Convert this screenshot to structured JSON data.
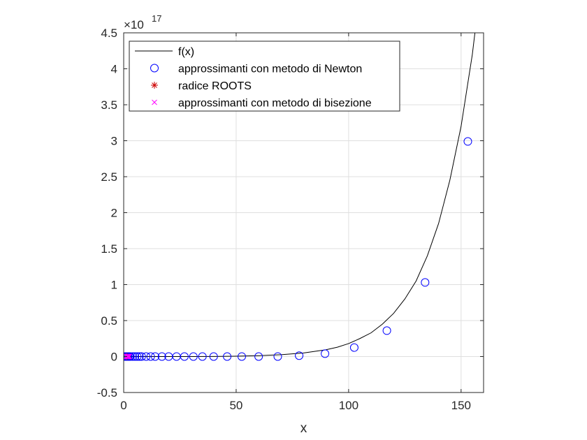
{
  "chart_data": {
    "type": "line",
    "title": "",
    "xlabel": "x",
    "ylabel": "",
    "xlim": [
      0,
      160
    ],
    "ylim": [
      -0.5,
      4.5
    ],
    "y_exponent_label": "×10",
    "y_exponent": "17",
    "y_scale": 1e+17,
    "x_ticks": [
      0,
      50,
      100,
      150
    ],
    "y_ticks": [
      -0.5,
      0,
      0.5,
      1,
      1.5,
      2,
      2.5,
      3,
      3.5,
      4,
      4.5
    ],
    "x_tick_labels": [
      "0",
      "50",
      "100",
      "150"
    ],
    "y_tick_labels": [
      "-0.5",
      "0",
      "0.5",
      "1",
      "1.5",
      "2",
      "2.5",
      "3",
      "3.5",
      "4",
      "4.5"
    ],
    "grid": true,
    "legend_position": "top-left",
    "series": [
      {
        "name": "f(x)",
        "style": "line",
        "color": "#000000",
        "x": [
          0,
          10,
          20,
          30,
          40,
          50,
          60,
          70,
          80,
          90,
          95,
          100,
          105,
          110,
          115,
          120,
          125,
          130,
          135,
          140,
          145,
          150,
          155,
          160
        ],
        "y": [
          0,
          4e-05,
          0.00015,
          0.0005,
          0.0016,
          0.005,
          0.012,
          0.025,
          0.05,
          0.095,
          0.13,
          0.18,
          0.25,
          0.33,
          0.45,
          0.6,
          0.8,
          1.05,
          1.4,
          1.85,
          2.45,
          3.2,
          4.2,
          5.5
        ]
      },
      {
        "name": "approssimanti con metodo di Newton",
        "style": "markers-o",
        "color": "#0000FF",
        "x": [
          0.5,
          1,
          1.5,
          2,
          2.5,
          3,
          4,
          5,
          6,
          7,
          8,
          10,
          12,
          14,
          17,
          20,
          23.5,
          27,
          31,
          35,
          40,
          46,
          52.5,
          60,
          68.5,
          78,
          89.5,
          102.5,
          117,
          134,
          153
        ],
        "y": [
          0,
          0,
          0,
          0,
          0,
          0,
          0,
          0,
          0,
          0,
          0,
          0,
          0,
          0,
          0,
          0,
          0,
          0,
          0,
          0,
          0,
          0,
          0,
          0,
          0.0003,
          0.012,
          0.04,
          0.125,
          0.36,
          1.03,
          2.99
        ]
      },
      {
        "name": "radice ROOTS",
        "style": "markers-star",
        "color": "#CC0000",
        "x": [
          1.5
        ],
        "y": [
          0
        ]
      },
      {
        "name": "approssimanti con metodo di bisezione",
        "style": "markers-x",
        "color": "#FF00FF",
        "x": [
          1.2,
          1.5,
          1.8,
          2,
          2.2,
          2.5
        ],
        "y": [
          0,
          0,
          0,
          0,
          0,
          0
        ]
      }
    ]
  }
}
